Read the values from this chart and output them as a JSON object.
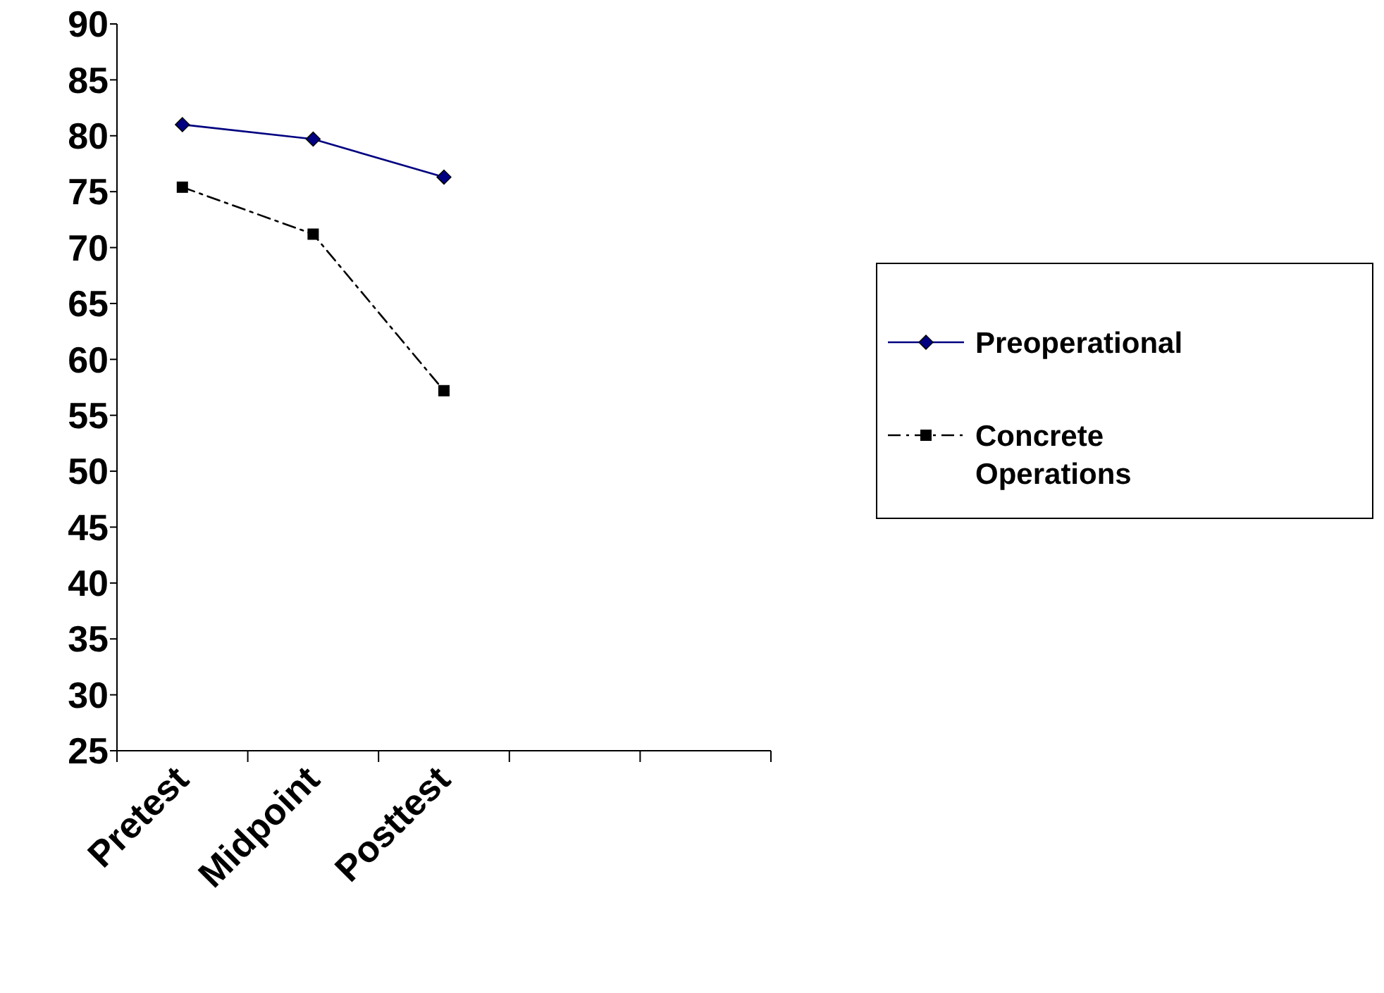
{
  "chart_data": {
    "type": "line",
    "categories": [
      "Pretest",
      "Midpoint",
      "Posttest",
      null,
      null
    ],
    "series": [
      {
        "name": "Preoperational",
        "color": "#000080",
        "values": [
          81.0,
          79.7,
          76.3,
          null,
          null
        ],
        "marker": "diamond",
        "line_style": "solid"
      },
      {
        "name": "Concrete Operations",
        "color": "#000000",
        "values": [
          75.4,
          71.2,
          57.2,
          null,
          null
        ],
        "marker": "square",
        "line_style": "dashed"
      }
    ],
    "ylim": [
      25,
      90
    ],
    "yticks": [
      25,
      30,
      35,
      40,
      45,
      50,
      55,
      60,
      65,
      70,
      75,
      80,
      85,
      90
    ],
    "grid": false,
    "legend": "right"
  }
}
